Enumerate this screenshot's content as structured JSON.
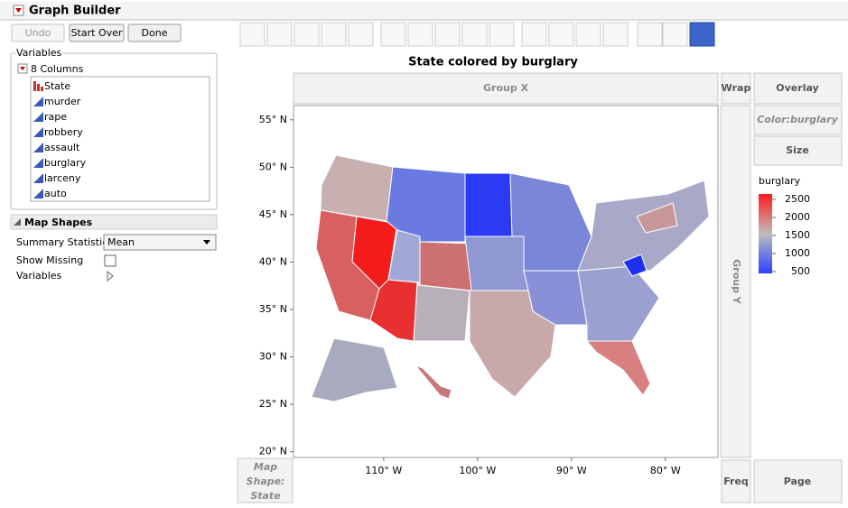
{
  "header": {
    "title": "Graph Builder"
  },
  "buttons": [
    "Undo",
    "Start Over",
    "Done"
  ],
  "variables": {
    "title": "Variables",
    "columns_label": "8 Columns",
    "columns": [
      "State",
      "murder",
      "rape",
      "robbery",
      "assault",
      "burglary",
      "larceny",
      "auto"
    ]
  },
  "map_shapes": {
    "title": "Map Shapes",
    "summary_statistic_label": "Summary Statistic",
    "summary_statistic": "Mean",
    "show_missing_label": "Show Missing",
    "variables_label": "Variables"
  },
  "graph": {
    "title": "State colored by burglary",
    "zones": {
      "group_x": "Group X",
      "group_y": "Group Y",
      "wrap": "Wrap",
      "overlay": "Overlay",
      "color": "Color:burglary",
      "size": "Size",
      "freq": "Freq",
      "page": "Page",
      "map_shape": [
        "Map",
        "Shape:",
        "State"
      ]
    },
    "ylim": [
      19.4,
      56.5
    ],
    "yticks": [
      {
        "value": 55,
        "label": "55° N"
      },
      {
        "value": 50,
        "label": "50° N"
      },
      {
        "value": 45,
        "label": "45° N"
      },
      {
        "value": 40,
        "label": "40° N"
      },
      {
        "value": 35,
        "label": "35° N"
      },
      {
        "value": 30,
        "label": "30° N"
      },
      {
        "value": 25,
        "label": "25° N"
      },
      {
        "value": 20,
        "label": "20° N"
      }
    ],
    "xlim": [
      -119.6,
      -74.4
    ],
    "xticks": [
      {
        "value": -110,
        "label": "110° W"
      },
      {
        "value": -100,
        "label": "100° W"
      },
      {
        "value": -90,
        "label": "90° W"
      },
      {
        "value": -80,
        "label": "80° W"
      }
    ],
    "legend": {
      "title": "burglary",
      "ticks": [
        2500,
        2000,
        1500,
        1000,
        500
      ],
      "colors": [
        "#ff1a1a",
        "#bdbdbd",
        "#2a40ff"
      ]
    }
  }
}
